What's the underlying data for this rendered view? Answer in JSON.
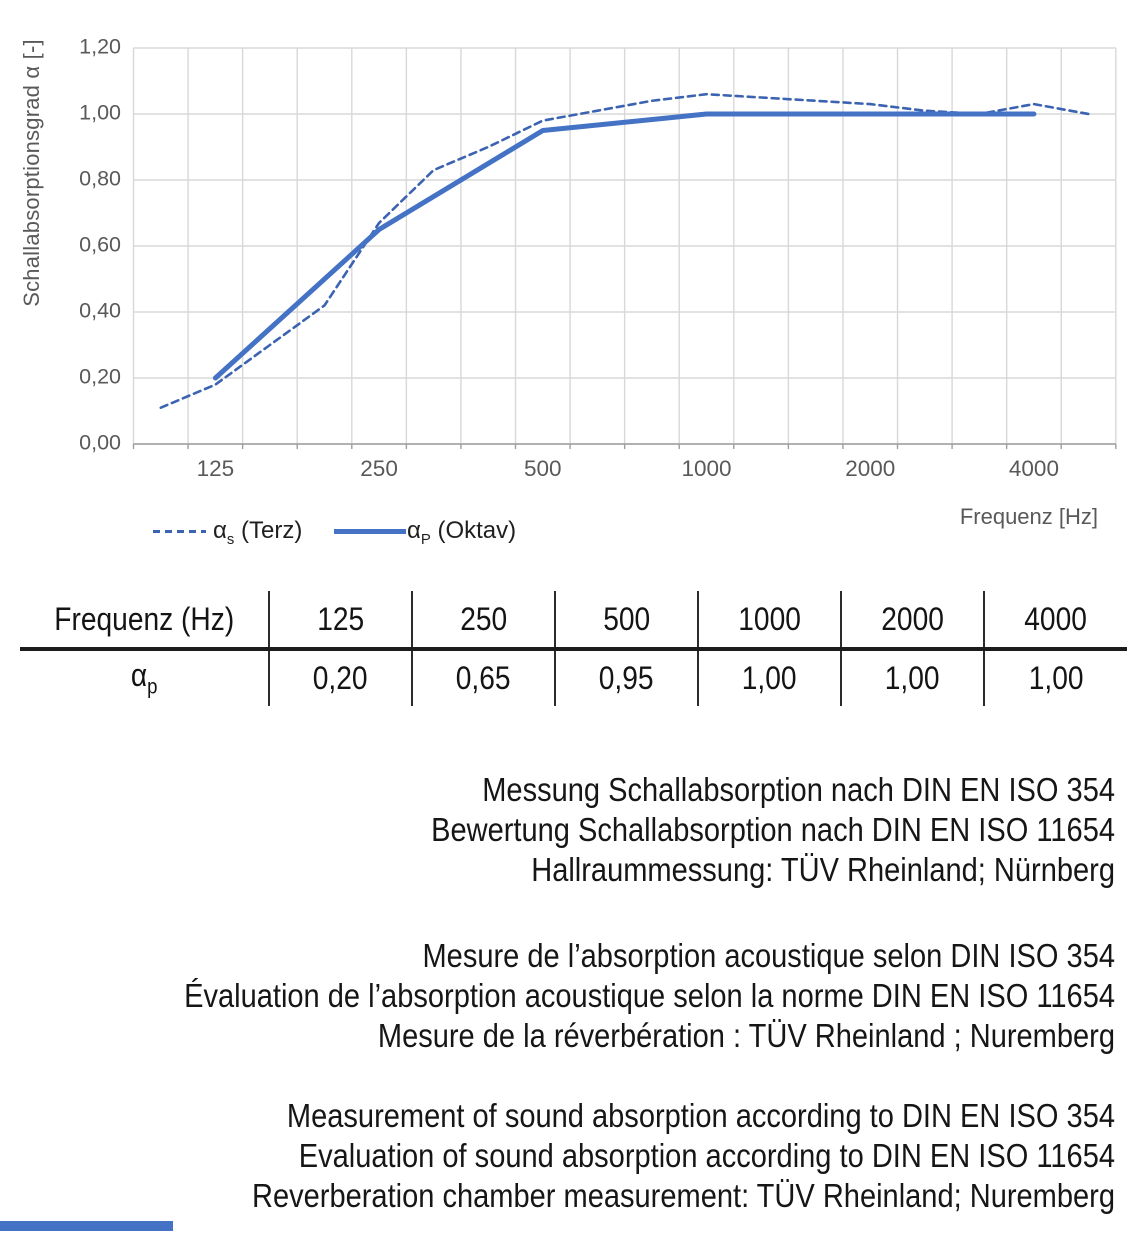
{
  "chart": {
    "ylabel": "Schallabsorptionsgrad α [-]",
    "xlabel": "Frequenz [Hz]",
    "y_tick_labels": [
      "0,00",
      "0,20",
      "0,40",
      "0,60",
      "0,80",
      "1,00",
      "1,20"
    ]
  },
  "chart_data": {
    "type": "line",
    "x": [
      "100",
      "125",
      "160",
      "200",
      "250",
      "315",
      "400",
      "500",
      "630",
      "800",
      "1000",
      "1250",
      "1600",
      "2000",
      "2500",
      "3150",
      "4000",
      "5000"
    ],
    "x_scale": "third-octave-band categories",
    "x_tick_labels_shown": [
      "125",
      "250",
      "500",
      "1000",
      "2000",
      "4000"
    ],
    "title": "",
    "xlabel": "Frequenz [Hz]",
    "ylabel": "Schallabsorptionsgrad α [-]",
    "ylim": [
      0,
      1.2
    ],
    "ytick_step": 0.2,
    "grid": true,
    "legend_position": "bottom-left",
    "series": [
      {
        "name": "αs (Terz)",
        "style": "dashed",
        "color": "#3C63B2",
        "x": [
          "100",
          "125",
          "160",
          "200",
          "250",
          "315",
          "400",
          "500",
          "630",
          "800",
          "1000",
          "1250",
          "1600",
          "2000",
          "2500",
          "3150",
          "4000",
          "5000"
        ],
        "values": [
          0.11,
          0.18,
          0.3,
          0.42,
          0.67,
          0.83,
          0.9,
          0.98,
          1.01,
          1.04,
          1.06,
          1.05,
          1.04,
          1.03,
          1.01,
          1.0,
          1.03,
          1.0
        ]
      },
      {
        "name": "αP (Oktav)",
        "style": "solid",
        "color": "#4472C4",
        "x": [
          "125",
          "250",
          "500",
          "1000",
          "2000",
          "4000"
        ],
        "values": [
          0.2,
          0.65,
          0.95,
          1.0,
          1.0,
          1.0
        ]
      }
    ]
  },
  "legend": {
    "items": [
      {
        "base": "α",
        "sub": "s",
        "rest": " (Terz)"
      },
      {
        "base": "α",
        "sub": "P",
        "rest": " (Oktav)"
      }
    ]
  },
  "table": {
    "header": [
      "Frequenz (Hz)",
      "125",
      "250",
      "500",
      "1000",
      "2000",
      "4000"
    ],
    "row": {
      "label_base": "α",
      "label_sub": "p",
      "values": [
        "0,20",
        "0,65",
        "0,95",
        "1,00",
        "1,00",
        "1,00"
      ]
    }
  },
  "notes": {
    "de": [
      "Messung Schallabsorption nach DIN EN ISO 354",
      "Bewertung Schallabsorption nach DIN EN ISO 11654",
      "Hallraummessung: TÜV Rheinland; Nürnberg"
    ],
    "fr": [
      "Mesure de l’absorption acoustique selon DIN ISO 354",
      "Évaluation de l’absorption acoustique selon la norme DIN EN ISO 11654",
      "Mesure de la réverbération : TÜV Rheinland ; Nuremberg"
    ],
    "en": [
      "Measurement of sound absorption according to DIN EN ISO 354",
      "Evaluation of sound absorption according to DIN EN ISO 11654",
      "Reverberation chamber measurement: TÜV Rheinland; Nuremberg"
    ]
  },
  "colors": {
    "series_dashed": "#3C63B2",
    "series_solid": "#4472C4",
    "gridline": "#D8D8D8",
    "axis": "#9E9E9E",
    "tick_text": "#595959",
    "accent_bar": "#4472C4"
  }
}
